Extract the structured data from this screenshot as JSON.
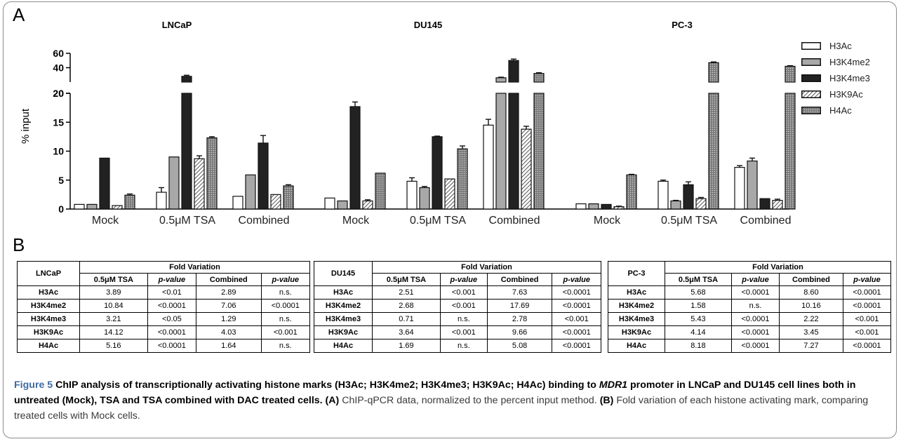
{
  "panel_a_letter": "A",
  "panel_b_letter": "B",
  "y_axis_label": "% input",
  "colors": {
    "H3Ac": "#ffffff",
    "H3K4me2": "#a8a8a8",
    "H3K4me3": "#222222",
    "H3K9Ac": "hatched-gray",
    "H4Ac": "dotted-gray",
    "frame": "#8c8c8c",
    "figure_label": "#3d6aa3"
  },
  "chart_data": [
    {
      "type": "bar",
      "title": "LNCaP",
      "categories": [
        "Mock",
        "0.5μM TSA",
        "Combined"
      ],
      "ylabel": "% input",
      "y_axis": "broken",
      "ylim_lower": [
        0,
        20
      ],
      "ylim_upper": [
        20,
        60
      ],
      "yticks_lower": [
        0,
        5,
        10,
        15,
        20
      ],
      "yticks_upper": [
        20,
        40,
        60
      ],
      "series": [
        {
          "name": "H3Ac",
          "values": [
            0.8,
            2.9,
            2.2
          ],
          "errors": [
            0,
            0.8,
            0
          ]
        },
        {
          "name": "H3K4me2",
          "values": [
            0.8,
            9.0,
            5.9
          ],
          "errors": [
            0,
            0,
            0
          ]
        },
        {
          "name": "H3K4me3",
          "values": [
            8.8,
            28.0,
            11.4
          ],
          "errors": [
            0,
            1.5,
            1.3
          ]
        },
        {
          "name": "H3K9Ac",
          "values": [
            0.6,
            8.7,
            2.5
          ],
          "errors": [
            0,
            0.5,
            0
          ]
        },
        {
          "name": "H4Ac",
          "values": [
            2.4,
            12.3,
            4.0
          ],
          "errors": [
            0.2,
            0.2,
            0.2
          ]
        }
      ]
    },
    {
      "type": "bar",
      "title": "DU145",
      "categories": [
        "Mock",
        "0.5μM TSA",
        "Combined"
      ],
      "y_axis": "broken",
      "series": [
        {
          "name": "H3Ac",
          "values": [
            1.9,
            4.8,
            14.5
          ],
          "errors": [
            0,
            0.6,
            1.0
          ]
        },
        {
          "name": "H3K4me2",
          "values": [
            1.4,
            3.7,
            26.0
          ],
          "errors": [
            0,
            0.2,
            0.8
          ]
        },
        {
          "name": "H3K4me3",
          "values": [
            17.7,
            12.5,
            50.0
          ],
          "errors": [
            0.8,
            0.1,
            2.0
          ]
        },
        {
          "name": "H3K9Ac",
          "values": [
            1.4,
            5.2,
            13.8
          ],
          "errors": [
            0.2,
            0,
            0.5
          ]
        },
        {
          "name": "H4Ac",
          "values": [
            6.2,
            10.4,
            32.0
          ],
          "errors": [
            0,
            0.5,
            1.0
          ]
        }
      ]
    },
    {
      "type": "bar",
      "title": "PC-3",
      "categories": [
        "Mock",
        "0.5μM TSA",
        "Combined"
      ],
      "y_axis": "broken",
      "series": [
        {
          "name": "H3Ac",
          "values": [
            0.9,
            4.8,
            7.2
          ],
          "errors": [
            0,
            0.2,
            0.3
          ]
        },
        {
          "name": "H3K4me2",
          "values": [
            0.9,
            1.4,
            8.3
          ],
          "errors": [
            0,
            0.1,
            0.5
          ]
        },
        {
          "name": "H3K4me3",
          "values": [
            0.8,
            4.2,
            1.8
          ],
          "errors": [
            0,
            0.5,
            0
          ]
        },
        {
          "name": "H3K9Ac",
          "values": [
            0.4,
            1.8,
            1.5
          ],
          "errors": [
            0.1,
            0.2,
            0.2
          ]
        },
        {
          "name": "H4Ac",
          "values": [
            5.9,
            47.0,
            42.0
          ],
          "errors": [
            0.1,
            1.0,
            0.8
          ]
        }
      ]
    }
  ],
  "legend": [
    "H3Ac",
    "H3K4me2",
    "H3K4me3",
    "H3K9Ac",
    "H4Ac"
  ],
  "tables": [
    {
      "cell_line": "LNCaP",
      "group_header": "Fold Variation",
      "columns": [
        "0.5μM TSA",
        "p-value",
        "Combined",
        "p-value"
      ],
      "rows": [
        [
          "H3Ac",
          "3.89",
          "<0.01",
          "2.89",
          "n.s."
        ],
        [
          "H3K4me2",
          "10.84",
          "<0.0001",
          "7.06",
          "<0.0001"
        ],
        [
          "H3K4me3",
          "3.21",
          "<0.05",
          "1.29",
          "n.s."
        ],
        [
          "H3K9Ac",
          "14.12",
          "<0.0001",
          "4.03",
          "<0.001"
        ],
        [
          "H4Ac",
          "5.16",
          "<0.0001",
          "1.64",
          "n.s."
        ]
      ]
    },
    {
      "cell_line": "DU145",
      "group_header": "Fold Variation",
      "columns": [
        "0.5μM TSA",
        "p-value",
        "Combined",
        "p-value"
      ],
      "rows": [
        [
          "H3Ac",
          "2.51",
          "<0.001",
          "7.63",
          "<0.0001"
        ],
        [
          "H3K4me2",
          "2.68",
          "<0.001",
          "17.69",
          "<0.0001"
        ],
        [
          "H3K4me3",
          "0.71",
          "n.s.",
          "2.78",
          "<0.001"
        ],
        [
          "H3K9Ac",
          "3.64",
          "<0.001",
          "9.66",
          "<0.0001"
        ],
        [
          "H4Ac",
          "1.69",
          "n.s.",
          "5.08",
          "<0.0001"
        ]
      ]
    },
    {
      "cell_line": "PC-3",
      "group_header": "Fold Variation",
      "columns": [
        "0.5μM TSA",
        "p-value",
        "Combined",
        "p-value"
      ],
      "rows": [
        [
          "H3Ac",
          "5.68",
          "<0.0001",
          "8.60",
          "<0.0001"
        ],
        [
          "H3K4me2",
          "1.58",
          "n.s.",
          "10.16",
          "<0.0001"
        ],
        [
          "H3K4me3",
          "5.43",
          "<0.0001",
          "2.22",
          "<0.001"
        ],
        [
          "H3K9Ac",
          "4.14",
          "<0.0001",
          "3.45",
          "<0.001"
        ],
        [
          "H4Ac",
          "8.18",
          "<0.0001",
          "7.27",
          "<0.0001"
        ]
      ]
    }
  ],
  "caption": {
    "figure_label": "Figure 5",
    "title_part1": " ChIP analysis of transcriptionally activating histone marks (H3Ac; H3K4me2; H3K4me3; H3K9Ac; H4Ac) binding to ",
    "gene": "MDR1",
    "title_part2": " promoter in LNCaP and DU145 cell lines both in untreated (Mock), TSA and TSA combined with DAC treated cells.",
    "panel_a_tag": " (A)",
    "panel_a_text": " ChIP-qPCR data, normalized to the percent input method.",
    "panel_b_tag": " (B)",
    "panel_b_text": " Fold variation of each histone activating mark, comparing treated cells with Mock cells."
  }
}
